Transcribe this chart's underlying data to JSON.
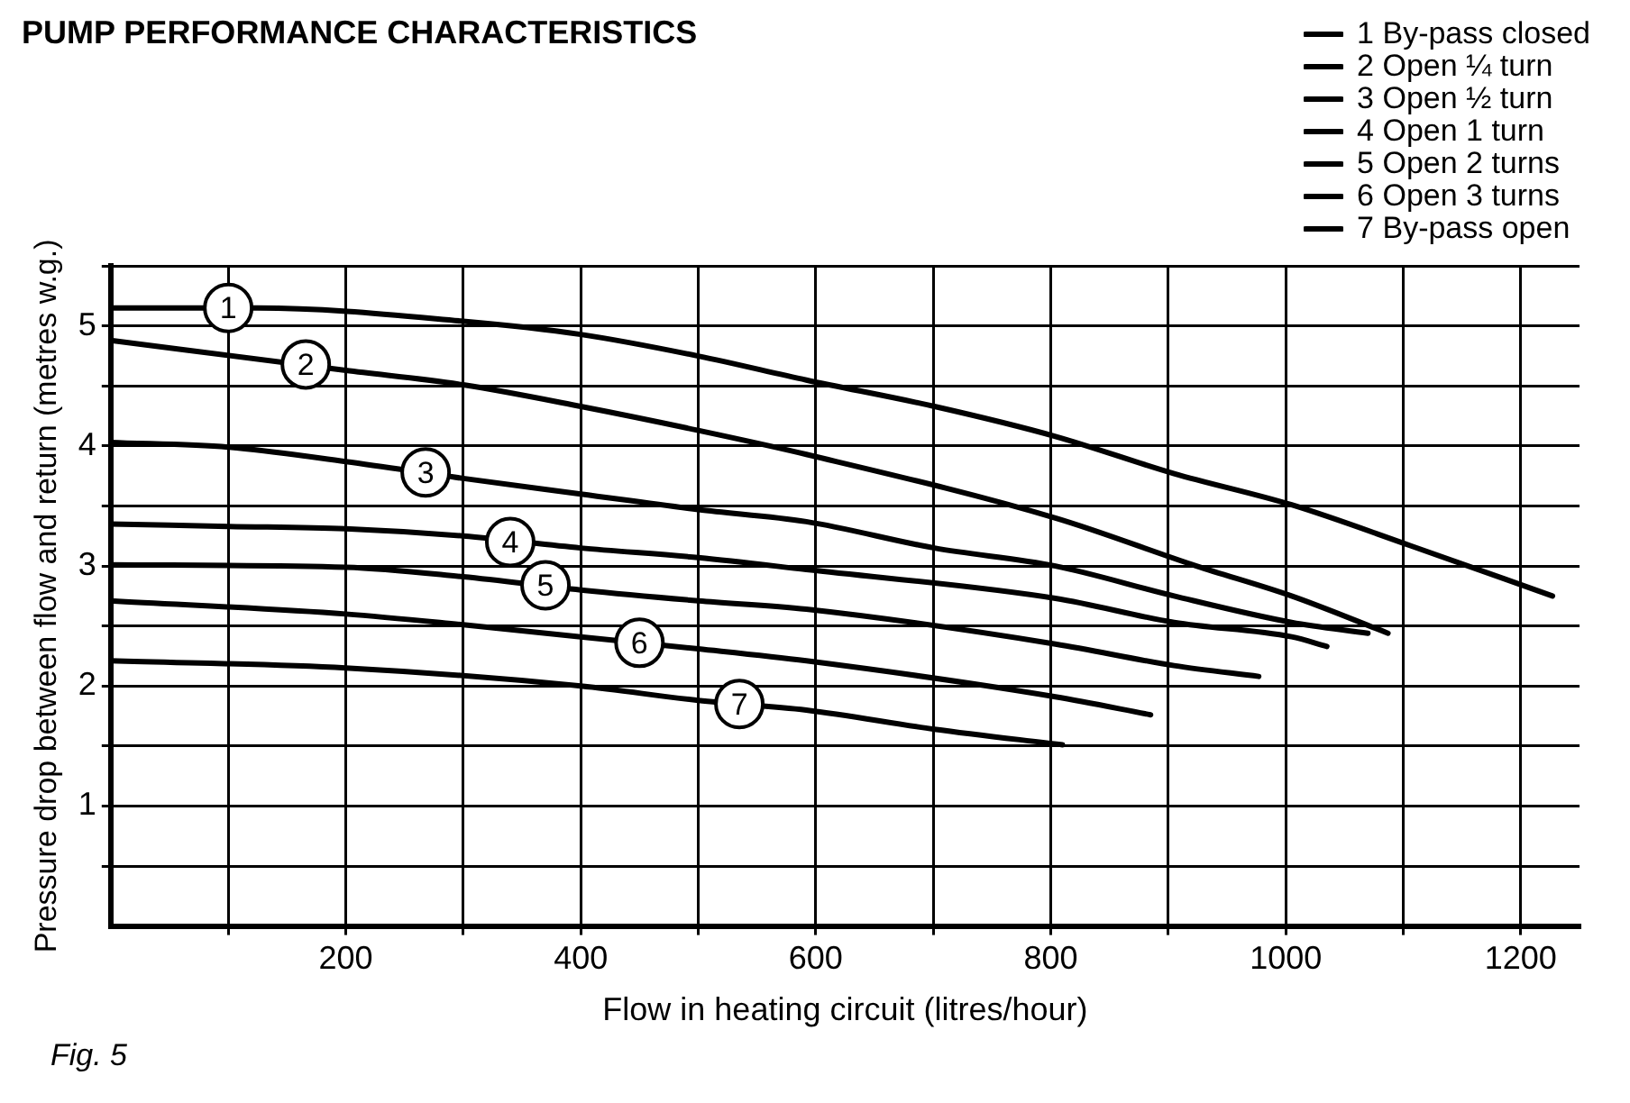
{
  "chart_data": {
    "type": "line",
    "title": "PUMP PERFORMANCE CHARACTERISTICS",
    "xlabel": "Flow in heating circuit (litres/hour)",
    "ylabel": "Pressure drop between flow and return (metres w.g.)",
    "xlim": [
      0,
      1250
    ],
    "ylim": [
      0,
      5.5
    ],
    "xticks": [
      {
        "value": 100,
        "label": null
      },
      200,
      {
        "value": 300,
        "label": null
      },
      400,
      {
        "value": 500,
        "label": null
      },
      600,
      {
        "value": 700,
        "label": null
      },
      800,
      {
        "value": 900,
        "label": null
      },
      1000,
      {
        "value": 1100,
        "label": null
      },
      1200
    ],
    "yticks": [
      {
        "value": 0.5,
        "label": null
      },
      1,
      {
        "value": 1.5,
        "label": null
      },
      2,
      {
        "value": 2.5,
        "label": null
      },
      3,
      {
        "value": 3.5,
        "label": null
      },
      4,
      {
        "value": 4.5,
        "label": null
      },
      5,
      {
        "value": 5.5,
        "label": null
      }
    ],
    "grid": true,
    "legend": "top right",
    "marker": "none",
    "line_style": "solid",
    "series": [
      {
        "name": "1 By-pass closed",
        "color": "#000000",
        "x": [
          0,
          125,
          300,
          400,
          500,
          592,
          701,
          804,
          905,
          1005,
          1106,
          1227
        ],
        "values": [
          5.15,
          5.15,
          5.04,
          4.93,
          4.75,
          4.55,
          4.33,
          4.08,
          3.77,
          3.51,
          3.17,
          2.75
        ]
      },
      {
        "name": "2 Open ¼ turn",
        "color": "#000000",
        "x": [
          0,
          200,
          300,
          400,
          500,
          592,
          804,
          924,
          1005,
          1087
        ],
        "values": [
          4.88,
          4.63,
          4.51,
          4.33,
          4.13,
          3.93,
          3.4,
          3.0,
          2.75,
          2.44
        ]
      },
      {
        "name": "3 Open ½ turn",
        "color": "#000000",
        "x": [
          0,
          100,
          200,
          300,
          400,
          500,
          592,
          701,
          804,
          905,
          1005,
          1070
        ],
        "values": [
          4.03,
          3.99,
          3.87,
          3.73,
          3.6,
          3.47,
          3.37,
          3.15,
          3.0,
          2.75,
          2.53,
          2.44
        ]
      },
      {
        "name": "4 Open 1 turn",
        "color": "#000000",
        "x": [
          0,
          100,
          200,
          300,
          400,
          500,
          592,
          804,
          905,
          1005,
          1035
        ],
        "values": [
          3.35,
          3.33,
          3.31,
          3.25,
          3.15,
          3.07,
          2.97,
          2.73,
          2.53,
          2.41,
          2.33
        ]
      },
      {
        "name": "5 Open 2 turns",
        "color": "#000000",
        "x": [
          0,
          200,
          300,
          400,
          500,
          592,
          804,
          905,
          977
        ],
        "values": [
          3.01,
          2.99,
          2.91,
          2.8,
          2.71,
          2.64,
          2.35,
          2.17,
          2.08
        ]
      },
      {
        "name": "6 Open 3 turns",
        "color": "#000000",
        "x": [
          0,
          200,
          300,
          400,
          500,
          592,
          804,
          885
        ],
        "values": [
          2.71,
          2.6,
          2.51,
          2.41,
          2.31,
          2.21,
          1.91,
          1.76
        ]
      },
      {
        "name": "7 By-pass open",
        "color": "#000000",
        "x": [
          0,
          200,
          400,
          500,
          592,
          701,
          810
        ],
        "values": [
          2.21,
          2.15,
          2.0,
          1.88,
          1.8,
          1.64,
          1.51
        ]
      }
    ],
    "annotations": [
      {
        "text": "1",
        "x": 100,
        "y": 5.15
      },
      {
        "text": "2",
        "x": 166,
        "y": 4.68
      },
      {
        "text": "3",
        "x": 268,
        "y": 3.78
      },
      {
        "text": "4",
        "x": 340,
        "y": 3.2
      },
      {
        "text": "5",
        "x": 370,
        "y": 2.84
      },
      {
        "text": "6",
        "x": 450,
        "y": 2.36
      },
      {
        "text": "7",
        "x": 535,
        "y": 1.85
      },
      "Fig. 5"
    ]
  }
}
